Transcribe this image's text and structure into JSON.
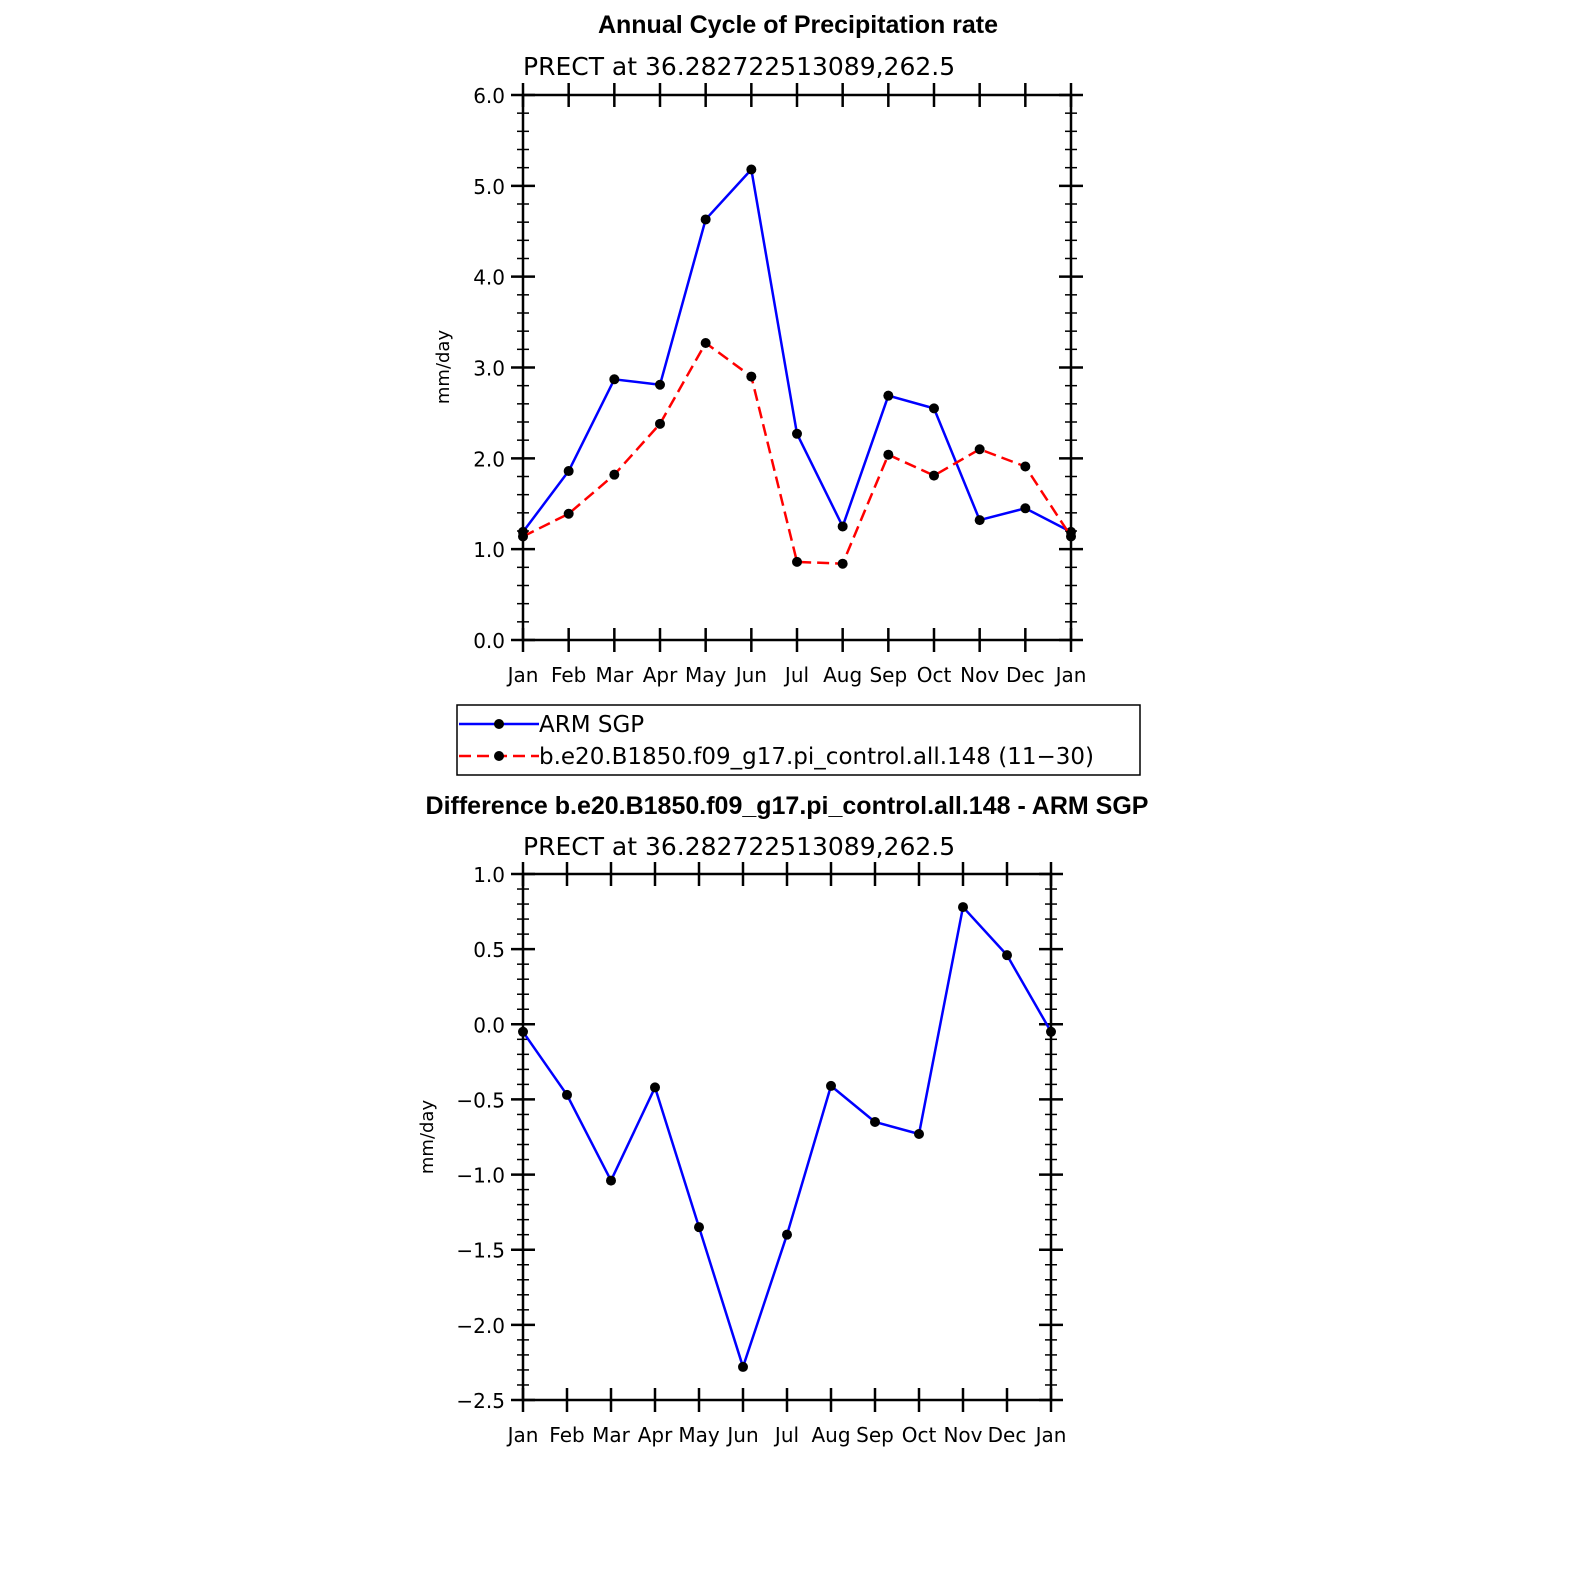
{
  "colors": {
    "obs": "#0000ff",
    "model": "#ff0000",
    "marker": "#000000",
    "frame": "#000000"
  },
  "legend": {
    "placement": "below-top-chart",
    "entries": [
      {
        "label": "ARM SGP",
        "color": "#0000ff",
        "dash": false
      },
      {
        "label": "b.e20.B1850.f09_g17.pi_control.all.148 (11−30)",
        "color": "#ff0000",
        "dash": true
      }
    ]
  },
  "chart_data": [
    {
      "type": "line",
      "title": "Annual Cycle of Precipitation rate",
      "subtitle": "PRECT at 36.282722513089,262.5",
      "xlabel": "",
      "ylabel": "mm/day",
      "ylim": [
        0,
        6
      ],
      "yticks": [
        "0.0",
        "1.0",
        "2.0",
        "3.0",
        "4.0",
        "5.0",
        "6.0"
      ],
      "y_minor_step": 0.2,
      "categories": [
        "Jan",
        "Feb",
        "Mar",
        "Apr",
        "May",
        "Jun",
        "Jul",
        "Aug",
        "Sep",
        "Oct",
        "Nov",
        "Dec",
        "Jan"
      ],
      "grid": false,
      "series": [
        {
          "name": "ARM SGP",
          "color": "#0000ff",
          "dash": false,
          "values": [
            1.19,
            1.86,
            2.87,
            2.81,
            4.63,
            5.18,
            2.27,
            1.25,
            2.69,
            2.55,
            1.32,
            1.45,
            1.19
          ]
        },
        {
          "name": "b.e20.B1850.f09_g17.pi_control.all.148 (11−30)",
          "color": "#ff0000",
          "dash": true,
          "values": [
            1.14,
            1.39,
            1.82,
            2.38,
            3.27,
            2.9,
            0.86,
            0.84,
            2.04,
            1.81,
            2.1,
            1.91,
            1.14
          ]
        }
      ]
    },
    {
      "type": "line",
      "title": "Difference b.e20.B1850.f09_g17.pi_control.all.148 - ARM SGP",
      "subtitle": "PRECT at 36.282722513089,262.5",
      "xlabel": "",
      "ylabel": "mm/day",
      "ylim": [
        -2.5,
        1.0
      ],
      "yticks": [
        "−2.5",
        "−2.0",
        "−1.5",
        "−1.0",
        "−0.5",
        "0.0",
        "0.5",
        "1.0"
      ],
      "y_minor_step": 0.1,
      "categories": [
        "Jan",
        "Feb",
        "Mar",
        "Apr",
        "May",
        "Jun",
        "Jul",
        "Aug",
        "Sep",
        "Oct",
        "Nov",
        "Dec",
        "Jan"
      ],
      "grid": false,
      "series": [
        {
          "name": "",
          "color": "#0000ff",
          "dash": false,
          "values": [
            -0.05,
            -0.47,
            -1.04,
            -0.42,
            -1.35,
            -2.28,
            -1.4,
            -0.41,
            -0.65,
            -0.73,
            0.78,
            0.46,
            -0.05
          ]
        }
      ]
    }
  ]
}
